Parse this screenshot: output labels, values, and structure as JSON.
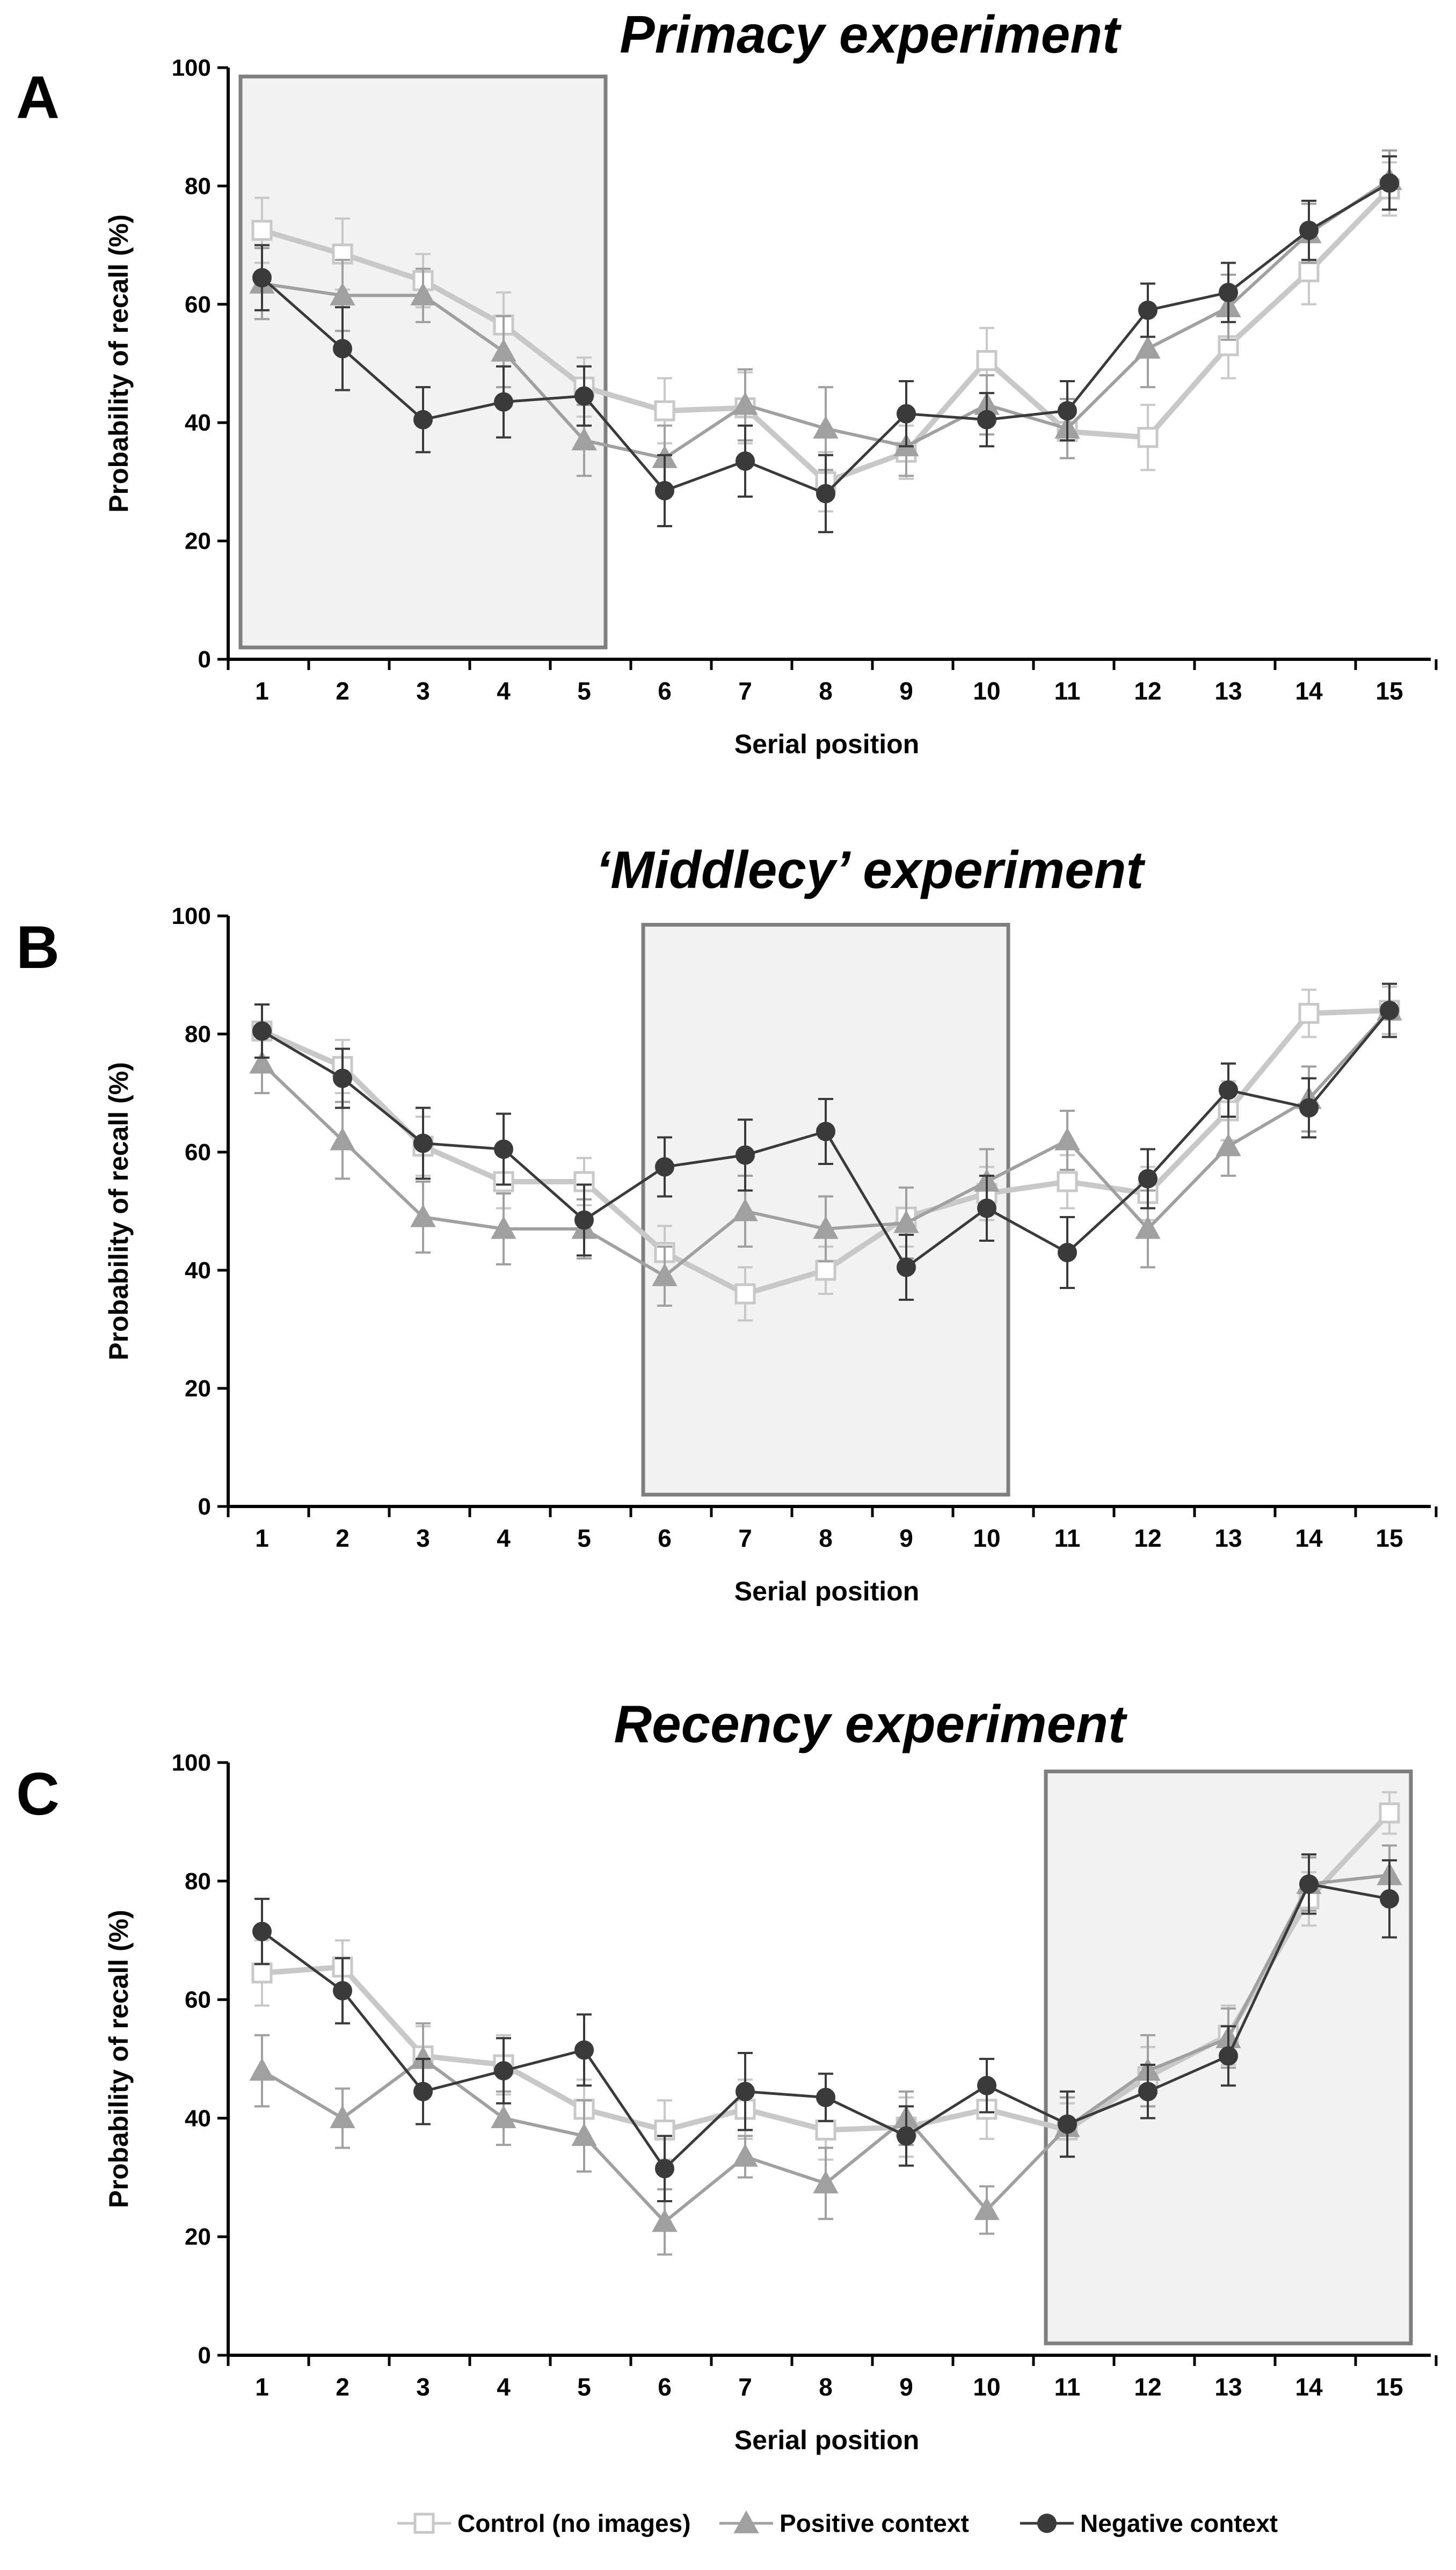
{
  "chart_data": [
    {
      "type": "line",
      "panel_letter": "A",
      "title": "Primacy experiment",
      "xlabel": "Serial position",
      "ylabel": "Probability of recall (%)",
      "ylim": [
        0,
        100
      ],
      "yticks": [
        0,
        20,
        40,
        60,
        80,
        100
      ],
      "x": [
        1,
        2,
        3,
        4,
        5,
        6,
        7,
        8,
        9,
        10,
        11,
        12,
        13,
        14,
        15
      ],
      "highlight_positions": [
        1,
        5
      ],
      "series": [
        {
          "name": "Control (no images)",
          "marker": "square-open",
          "color": "#c8c8c8",
          "values": [
            72.5,
            68.5,
            64,
            56.5,
            46,
            42,
            42.5,
            30,
            35,
            50.5,
            38.5,
            37.5,
            53,
            65.5,
            79.5
          ],
          "errors": [
            5.5,
            6,
            4.5,
            5.5,
            5,
            5.5,
            6,
            5,
            4.5,
            5.5,
            4.5,
            5.5,
            5.5,
            5.5,
            4.5
          ]
        },
        {
          "name": "Positive context",
          "marker": "triangle",
          "color": "#a0a0a0",
          "values": [
            63.5,
            61.5,
            61.5,
            52,
            37,
            34,
            43,
            39,
            36,
            43,
            39,
            52.5,
            59.5,
            72,
            81
          ],
          "errors": [
            6,
            6,
            4.5,
            6,
            6,
            5.5,
            6,
            7,
            5,
            5,
            5,
            6.5,
            5.5,
            5,
            5
          ]
        },
        {
          "name": "Negative context",
          "marker": "circle",
          "color": "#3a3a3a",
          "values": [
            64.5,
            52.5,
            40.5,
            43.5,
            44.5,
            28.5,
            33.5,
            28,
            41.5,
            40.5,
            42,
            59,
            62,
            72.5,
            80.5
          ],
          "errors": [
            5.5,
            7,
            5.5,
            6,
            5,
            6,
            6,
            6.5,
            5.5,
            4.5,
            5,
            4.5,
            5,
            5,
            4.5
          ]
        }
      ]
    },
    {
      "type": "line",
      "panel_letter": "B",
      "title": "‘Middlecy’ experiment",
      "xlabel": "Serial position",
      "ylabel": "Probability of recall (%)",
      "ylim": [
        0,
        100
      ],
      "yticks": [
        0,
        20,
        40,
        60,
        80,
        100
      ],
      "x": [
        1,
        2,
        3,
        4,
        5,
        6,
        7,
        8,
        9,
        10,
        11,
        12,
        13,
        14,
        15
      ],
      "highlight_positions": [
        6,
        10
      ],
      "series": [
        {
          "name": "Control (no images)",
          "marker": "square-open",
          "color": "#c8c8c8",
          "values": [
            80.5,
            74.5,
            61,
            55,
            55,
            43,
            36,
            40,
            49,
            53,
            55,
            53,
            67,
            83.5,
            84
          ],
          "errors": [
            4.5,
            4.5,
            5,
            4.5,
            4,
            4.5,
            4.5,
            4,
            5,
            4.5,
            4.5,
            4.5,
            5,
            4,
            4
          ]
        },
        {
          "name": "Positive context",
          "marker": "triangle",
          "color": "#a0a0a0",
          "values": [
            75,
            62,
            49,
            47,
            47,
            39,
            50,
            47,
            48,
            55,
            62,
            47,
            61,
            69,
            84
          ],
          "errors": [
            5,
            6.5,
            6,
            6,
            5,
            5,
            6,
            5.5,
            6,
            5.5,
            5,
            6.5,
            5,
            5.5,
            4.5
          ]
        },
        {
          "name": "Negative context",
          "marker": "circle",
          "color": "#3a3a3a",
          "values": [
            80.5,
            72.5,
            61.5,
            60.5,
            48.5,
            57.5,
            59.5,
            63.5,
            40.5,
            50.5,
            43,
            55.5,
            70.5,
            67.5,
            84
          ],
          "errors": [
            4.5,
            5,
            6,
            6,
            6,
            5,
            6,
            5.5,
            5.5,
            5.5,
            6,
            5,
            4.5,
            5,
            4.5
          ]
        }
      ]
    },
    {
      "type": "line",
      "panel_letter": "C",
      "title": "Recency experiment",
      "xlabel": "Serial position",
      "ylabel": "Probability of recall (%)",
      "ylim": [
        0,
        100
      ],
      "yticks": [
        0,
        20,
        40,
        60,
        80,
        100
      ],
      "x": [
        1,
        2,
        3,
        4,
        5,
        6,
        7,
        8,
        9,
        10,
        11,
        12,
        13,
        14,
        15
      ],
      "highlight_positions": [
        11,
        15
      ],
      "series": [
        {
          "name": "Control (no images)",
          "marker": "square-open",
          "color": "#c8c8c8",
          "values": [
            64.5,
            65.5,
            50.5,
            49,
            41.5,
            38,
            41.5,
            38,
            38.5,
            41.5,
            38,
            47,
            54,
            77,
            91.5
          ],
          "errors": [
            5.5,
            4.5,
            5,
            5,
            5,
            5,
            5,
            5,
            5,
            5,
            4.5,
            5,
            5,
            4.5,
            3.5
          ]
        },
        {
          "name": "Positive context",
          "marker": "triangle",
          "color": "#a0a0a0",
          "values": [
            48,
            40,
            50,
            40,
            37,
            22.5,
            33.5,
            29,
            40,
            24.5,
            38.5,
            48,
            53.5,
            79.5,
            81
          ],
          "errors": [
            6,
            5,
            6,
            4.5,
            6,
            5.5,
            3.5,
            6,
            4.5,
            4,
            5,
            6,
            5,
            4.5,
            5
          ]
        },
        {
          "name": "Negative context",
          "marker": "circle",
          "color": "#3a3a3a",
          "values": [
            71.5,
            61.5,
            44.5,
            48,
            51.5,
            31.5,
            44.5,
            43.5,
            37,
            45.5,
            39,
            44.5,
            50.5,
            79.5,
            77
          ],
          "errors": [
            5.5,
            5.5,
            5.5,
            5.5,
            6,
            5.5,
            6.5,
            4,
            5,
            4.5,
            5.5,
            4.5,
            5,
            5,
            6.5
          ]
        }
      ]
    }
  ],
  "legend": {
    "position": "bottom",
    "items": [
      {
        "label": "Control (no images)",
        "marker": "square-open",
        "color": "#c8c8c8"
      },
      {
        "label": "Positive context",
        "marker": "triangle",
        "color": "#a0a0a0"
      },
      {
        "label": "Negative context",
        "marker": "circle",
        "color": "#3a3a3a"
      }
    ]
  }
}
